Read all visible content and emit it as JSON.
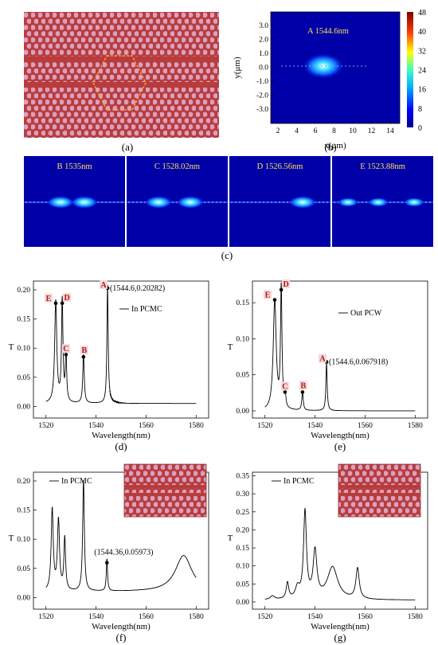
{
  "captions": {
    "a": "(a)",
    "b": "(b)",
    "c": "(c)",
    "d": "(d)",
    "e": "(e)",
    "f": "(f)",
    "g": "(g)"
  },
  "panel_b": {
    "label": "A 1544.6nm",
    "xlabel": "x(μm)",
    "ylabel": "y(μm)",
    "xticks": [
      "2",
      "4",
      "6",
      "8",
      "10",
      "12",
      "14"
    ],
    "yticks": [
      "3.0",
      "2.0",
      "1.0",
      "0.0",
      "-1.0",
      "-2.0",
      "-3.0"
    ],
    "colorbar_ticks": [
      "48",
      "40",
      "32",
      "24",
      "16",
      "8",
      "0"
    ]
  },
  "panel_c": {
    "labels": [
      "B 1535nm",
      "C 1528.02nm",
      "D 1526.56nm",
      "E 1523.88nm"
    ]
  },
  "chart_data": [
    {
      "id": "d",
      "type": "line",
      "xlabel": "Wavelength(nm)",
      "ylabel": "T",
      "xlim": [
        1515,
        1585
      ],
      "ylim": [
        -0.02,
        0.215
      ],
      "xticks": [
        "1520",
        "1540",
        "1560",
        "1580"
      ],
      "yticks": [
        "0.00",
        "0.05",
        "0.10",
        "0.15",
        "0.20"
      ],
      "legend": "In PCMC",
      "annotation": "(1544.6,0.20282)",
      "markers": [
        {
          "letter": "A",
          "x": 1544.6,
          "y": 0.20282
        },
        {
          "letter": "B",
          "x": 1535.0,
          "y": 0.085
        },
        {
          "letter": "C",
          "x": 1528.0,
          "y": 0.089
        },
        {
          "letter": "D",
          "x": 1526.5,
          "y": 0.177
        },
        {
          "letter": "E",
          "x": 1523.9,
          "y": 0.177
        }
      ],
      "peaks": [
        {
          "x": 1523.9,
          "h": 0.175,
          "w": 0.5
        },
        {
          "x": 1526.5,
          "h": 0.175,
          "w": 0.35
        },
        {
          "x": 1528.0,
          "h": 0.088,
          "w": 0.3
        },
        {
          "x": 1535.0,
          "h": 0.083,
          "w": 0.35
        },
        {
          "x": 1544.6,
          "h": 0.2,
          "w": 0.3
        }
      ],
      "baseline": 0.005
    },
    {
      "id": "e",
      "type": "line",
      "xlabel": "Wavelength(nm)",
      "ylabel": "T",
      "xlim": [
        1515,
        1585
      ],
      "ylim": [
        -0.01,
        0.18
      ],
      "xticks": [
        "1520",
        "1540",
        "1560",
        "1580"
      ],
      "yticks": [
        "0.00",
        "0.05",
        "0.10",
        "0.15"
      ],
      "legend": "Out PCW",
      "annotation": "(1544.6,0.067918)",
      "markers": [
        {
          "letter": "A",
          "x": 1544.6,
          "y": 0.067918
        },
        {
          "letter": "B",
          "x": 1535.0,
          "y": 0.026
        },
        {
          "letter": "C",
          "x": 1528.0,
          "y": 0.026
        },
        {
          "letter": "D",
          "x": 1526.5,
          "y": 0.168
        },
        {
          "letter": "E",
          "x": 1523.9,
          "y": 0.154
        }
      ],
      "peaks": [
        {
          "x": 1523.9,
          "h": 0.153,
          "w": 0.7
        },
        {
          "x": 1526.5,
          "h": 0.167,
          "w": 0.35
        },
        {
          "x": 1528.0,
          "h": 0.025,
          "w": 0.3
        },
        {
          "x": 1535.0,
          "h": 0.025,
          "w": 0.35
        },
        {
          "x": 1544.6,
          "h": 0.067,
          "w": 0.3
        }
      ],
      "baseline": 0.0
    },
    {
      "id": "f",
      "type": "line",
      "xlabel": "Wavelength(nm)",
      "ylabel": "T",
      "xlim": [
        1515,
        1585
      ],
      "ylim": [
        -0.02,
        0.215
      ],
      "xticks": [
        "1520",
        "1540",
        "1560",
        "1580"
      ],
      "yticks": [
        "0.00",
        "0.05",
        "0.10",
        "0.15",
        "0.20"
      ],
      "legend": "In PCMC",
      "annotation": "(1544.36,0.05973)",
      "markers": [
        {
          "letter": "",
          "x": 1544.36,
          "y": 0.05973
        }
      ],
      "peaks": [
        {
          "x": 1522.5,
          "h": 0.14,
          "w": 0.5
        },
        {
          "x": 1525.0,
          "h": 0.12,
          "w": 0.5
        },
        {
          "x": 1527.5,
          "h": 0.09,
          "w": 0.4
        },
        {
          "x": 1535.0,
          "h": 0.19,
          "w": 0.4
        },
        {
          "x": 1544.36,
          "h": 0.055,
          "w": 0.3
        },
        {
          "x": 1575.0,
          "h": 0.062,
          "w": 4.0
        }
      ],
      "baseline": 0.01
    },
    {
      "id": "g",
      "type": "line",
      "xlabel": "Wavelength(nm)",
      "ylabel": "T",
      "xlim": [
        1515,
        1585
      ],
      "ylim": [
        -0.02,
        0.36
      ],
      "xticks": [
        "1520",
        "1540",
        "1560",
        "1580"
      ],
      "yticks": [
        "0.00",
        "0.05",
        "0.10",
        "0.15",
        "0.20",
        "0.25",
        "0.30",
        "0.35"
      ],
      "legend": "In PCMC",
      "peaks": [
        {
          "x": 1523.0,
          "h": 0.01,
          "w": 1.0
        },
        {
          "x": 1529.0,
          "h": 0.045,
          "w": 0.6
        },
        {
          "x": 1536.0,
          "h": 0.24,
          "w": 0.7
        },
        {
          "x": 1540.0,
          "h": 0.13,
          "w": 0.9
        },
        {
          "x": 1547.0,
          "h": 0.09,
          "w": 2.5
        },
        {
          "x": 1557.0,
          "h": 0.085,
          "w": 0.8
        },
        {
          "x": 1533.0,
          "h": 0.03,
          "w": 1.0
        }
      ],
      "baseline": 0.005
    }
  ]
}
